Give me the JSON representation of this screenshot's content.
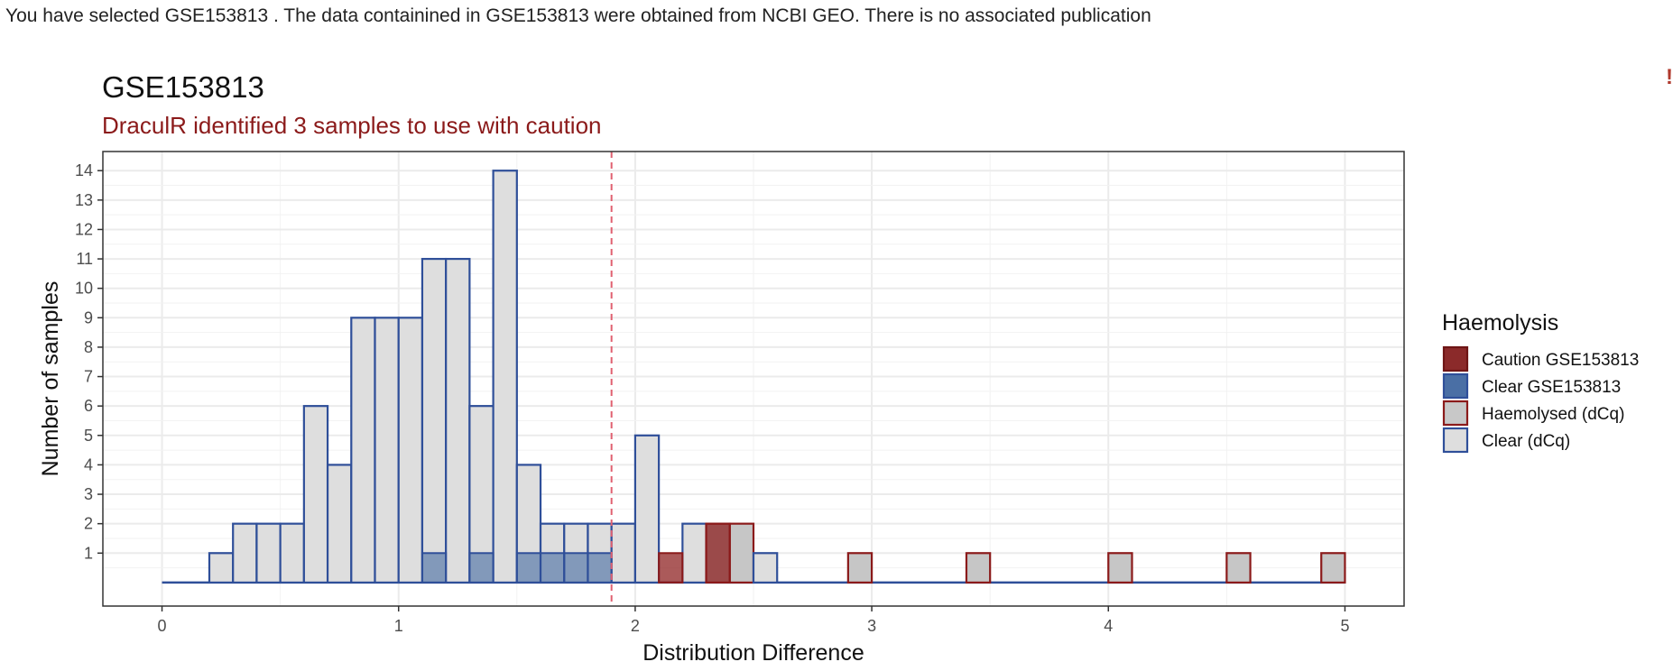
{
  "header": {
    "info_text": "You have selected GSE153813 . The data containined in GSE153813 were obtained from NCBI GEO. There is no associated publication",
    "corner_mark": "!"
  },
  "chart_data": {
    "type": "bar",
    "subtype": "stacked-histogram",
    "title": "GSE153813",
    "subtitle": "DraculR identified 3 samples to use with caution",
    "xlabel": "Distribution Difference",
    "ylabel": "Number of samples",
    "xlim": [
      -0.25,
      5.25
    ],
    "ylim": [
      -0.8,
      14.65
    ],
    "x_ticks": [
      0,
      1,
      2,
      3,
      4,
      5
    ],
    "y_ticks": [
      1,
      2,
      3,
      4,
      5,
      6,
      7,
      8,
      9,
      10,
      11,
      12,
      13,
      14
    ],
    "bin_width": 0.1,
    "threshold": 1.9,
    "grid": true,
    "colors": {
      "caution_fill": "#8b1a1a",
      "clear_fill": "#4a6fa5",
      "haemolysed_outline": "#8b1a1a",
      "clear_outline": "#2f4f99",
      "reference_fill": "#dedede",
      "haemolysed_ref_fill": "#c6c6c6",
      "threshold_line": "#e06070",
      "title": "#111111",
      "subtitle": "#8b1a1a"
    },
    "reference_bins": [
      {
        "x0": 0.2,
        "x1": 0.3,
        "count": 1,
        "group": "Clear (dCq)"
      },
      {
        "x0": 0.3,
        "x1": 0.4,
        "count": 2,
        "group": "Clear (dCq)"
      },
      {
        "x0": 0.4,
        "x1": 0.5,
        "count": 2,
        "group": "Clear (dCq)"
      },
      {
        "x0": 0.5,
        "x1": 0.6,
        "count": 2,
        "group": "Clear (dCq)"
      },
      {
        "x0": 0.6,
        "x1": 0.7,
        "count": 6,
        "group": "Clear (dCq)"
      },
      {
        "x0": 0.7,
        "x1": 0.8,
        "count": 4,
        "group": "Clear (dCq)"
      },
      {
        "x0": 0.8,
        "x1": 0.9,
        "count": 9,
        "group": "Clear (dCq)"
      },
      {
        "x0": 0.9,
        "x1": 1.0,
        "count": 9,
        "group": "Clear (dCq)"
      },
      {
        "x0": 1.0,
        "x1": 1.1,
        "count": 9,
        "group": "Clear (dCq)"
      },
      {
        "x0": 1.1,
        "x1": 1.2,
        "count": 11,
        "group": "Clear (dCq)"
      },
      {
        "x0": 1.2,
        "x1": 1.3,
        "count": 11,
        "group": "Clear (dCq)"
      },
      {
        "x0": 1.3,
        "x1": 1.4,
        "count": 6,
        "group": "Clear (dCq)"
      },
      {
        "x0": 1.4,
        "x1": 1.5,
        "count": 14,
        "group": "Clear (dCq)"
      },
      {
        "x0": 1.5,
        "x1": 1.6,
        "count": 4,
        "group": "Clear (dCq)"
      },
      {
        "x0": 1.6,
        "x1": 1.7,
        "count": 2,
        "group": "Clear (dCq)"
      },
      {
        "x0": 1.7,
        "x1": 1.8,
        "count": 2,
        "group": "Clear (dCq)"
      },
      {
        "x0": 1.8,
        "x1": 1.9,
        "count": 2,
        "group": "Clear (dCq)"
      },
      {
        "x0": 1.9,
        "x1": 2.0,
        "count": 2,
        "group": "Clear (dCq)"
      },
      {
        "x0": 2.0,
        "x1": 2.1,
        "count": 5,
        "group": "Clear (dCq)"
      },
      {
        "x0": 2.2,
        "x1": 2.3,
        "count": 2,
        "group": "Clear (dCq)"
      },
      {
        "x0": 2.3,
        "x1": 2.4,
        "count": 2,
        "group": "Haemolysed (dCq)"
      },
      {
        "x0": 2.4,
        "x1": 2.5,
        "count": 2,
        "group": "Haemolysed (dCq)"
      },
      {
        "x0": 2.5,
        "x1": 2.6,
        "count": 1,
        "group": "Clear (dCq)"
      },
      {
        "x0": 2.9,
        "x1": 3.0,
        "count": 1,
        "group": "Haemolysed (dCq)"
      },
      {
        "x0": 3.4,
        "x1": 3.5,
        "count": 1,
        "group": "Haemolysed (dCq)"
      },
      {
        "x0": 4.0,
        "x1": 4.1,
        "count": 1,
        "group": "Haemolysed (dCq)"
      },
      {
        "x0": 4.5,
        "x1": 4.6,
        "count": 1,
        "group": "Haemolysed (dCq)"
      },
      {
        "x0": 4.9,
        "x1": 5.0,
        "count": 1,
        "group": "Haemolysed (dCq)"
      }
    ],
    "dataset_bins": [
      {
        "x0": 1.1,
        "x1": 1.2,
        "count": 1,
        "group": "Clear GSE153813"
      },
      {
        "x0": 1.3,
        "x1": 1.4,
        "count": 1,
        "group": "Clear GSE153813"
      },
      {
        "x0": 1.5,
        "x1": 1.6,
        "count": 1,
        "group": "Clear GSE153813"
      },
      {
        "x0": 1.6,
        "x1": 1.7,
        "count": 1,
        "group": "Clear GSE153813"
      },
      {
        "x0": 1.7,
        "x1": 1.8,
        "count": 1,
        "group": "Clear GSE153813"
      },
      {
        "x0": 1.8,
        "x1": 1.9,
        "count": 1,
        "group": "Clear GSE153813"
      },
      {
        "x0": 2.1,
        "x1": 2.2,
        "count": 1,
        "group": "Caution GSE153813"
      },
      {
        "x0": 2.3,
        "x1": 2.4,
        "count": 2,
        "group": "Caution GSE153813"
      }
    ],
    "legend": {
      "title": "Haemolysis",
      "position": "right",
      "items": [
        {
          "label": "Caution GSE153813",
          "fill": "#8b2a2a",
          "stroke": "#6e1515"
        },
        {
          "label": "Clear GSE153813",
          "fill": "#4a6fa5",
          "stroke": "#2f4f99"
        },
        {
          "label": "Haemolysed (dCq)",
          "fill": "#c8c8c8",
          "stroke": "#8b1a1a"
        },
        {
          "label": "Clear (dCq)",
          "fill": "#dedede",
          "stroke": "#2f4f99"
        }
      ]
    }
  }
}
